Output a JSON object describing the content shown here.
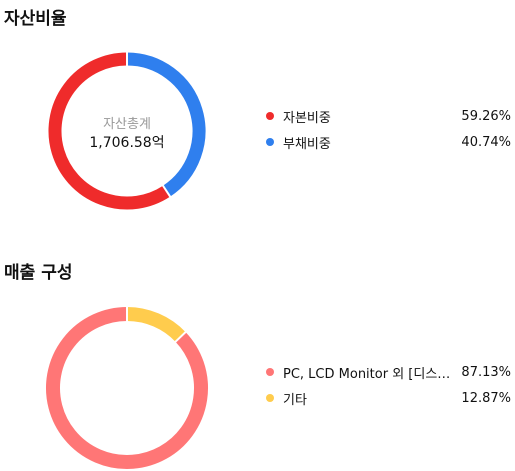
{
  "sections": [
    {
      "title": "자산비율",
      "center_caption": "자산총계",
      "center_value": "1,706.58억"
    },
    {
      "title": "매출 구성"
    }
  ],
  "chart_data": [
    {
      "type": "pie",
      "title": "자산비율",
      "donut": true,
      "start_angle_deg": 0,
      "clockwise": false,
      "center_text": [
        "자산총계",
        "1,706.58억"
      ],
      "categories": [
        "자본비중",
        "부채비중"
      ],
      "values": [
        59.26,
        40.74
      ],
      "value_labels": [
        "59.26%",
        "40.74%"
      ],
      "colors": [
        "#ef2b2b",
        "#2f7fee"
      ],
      "legend_position": "right"
    },
    {
      "type": "pie",
      "title": "매출 구성",
      "donut": true,
      "start_angle_deg": 0,
      "clockwise": false,
      "categories": [
        "PC, LCD Monitor 외 [디스…",
        "기타"
      ],
      "values": [
        87.13,
        12.87
      ],
      "value_labels": [
        "87.13%",
        "12.87%"
      ],
      "colors": [
        "#ff7676",
        "#ffcc4d"
      ],
      "legend_position": "right"
    }
  ]
}
